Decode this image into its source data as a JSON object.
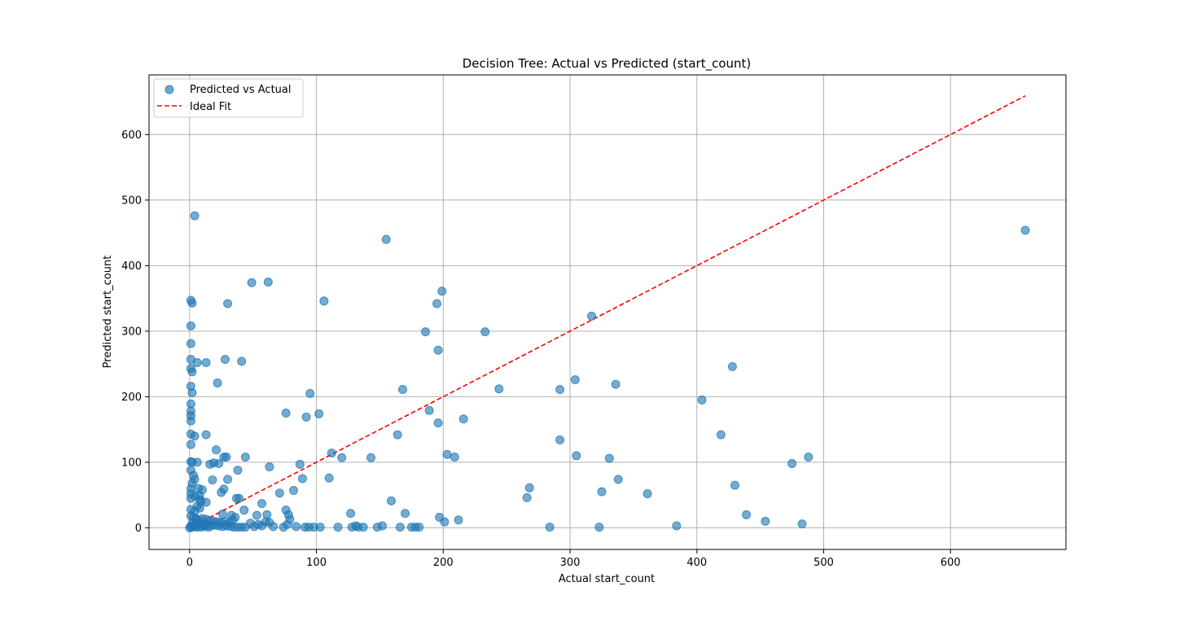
{
  "chart_data": {
    "type": "scatter",
    "title": "Decision Tree: Actual vs Predicted (start_count)",
    "xlabel": "Actual start_count",
    "ylabel": "Predicted start_count",
    "xlim": [
      -32,
      691
    ],
    "ylim": [
      -33,
      691
    ],
    "xticks": [
      0,
      100,
      200,
      300,
      400,
      500,
      600
    ],
    "yticks": [
      0,
      100,
      200,
      300,
      400,
      500,
      600
    ],
    "grid": true,
    "legend_position": "top-left",
    "colors": {
      "points": "#1f77b4",
      "ideal_line": "#ff0000",
      "grid": "#b0b0b0"
    },
    "series": [
      {
        "name": "Predicted vs Actual",
        "style": "markers",
        "points": [
          [
            4,
            476
          ],
          [
            155,
            440
          ],
          [
            659,
            454
          ],
          [
            49,
            374
          ],
          [
            62,
            375
          ],
          [
            106,
            346
          ],
          [
            1,
            347
          ],
          [
            2,
            343
          ],
          [
            30,
            342
          ],
          [
            199,
            361
          ],
          [
            195,
            342
          ],
          [
            317,
            323
          ],
          [
            186,
            299
          ],
          [
            233,
            299
          ],
          [
            1,
            308
          ],
          [
            196,
            271
          ],
          [
            1,
            281
          ],
          [
            428,
            246
          ],
          [
            1,
            257
          ],
          [
            28,
            257
          ],
          [
            6,
            252
          ],
          [
            13,
            252
          ],
          [
            41,
            254
          ],
          [
            1,
            243
          ],
          [
            2,
            238
          ],
          [
            22,
            221
          ],
          [
            336,
            219
          ],
          [
            304,
            226
          ],
          [
            1,
            216
          ],
          [
            168,
            211
          ],
          [
            244,
            212
          ],
          [
            292,
            211
          ],
          [
            2,
            206
          ],
          [
            95,
            205
          ],
          [
            404,
            195
          ],
          [
            1,
            189
          ],
          [
            1,
            178
          ],
          [
            1,
            171
          ],
          [
            76,
            175
          ],
          [
            102,
            174
          ],
          [
            189,
            179
          ],
          [
            1,
            163
          ],
          [
            92,
            169
          ],
          [
            216,
            166
          ],
          [
            196,
            160
          ],
          [
            1,
            143
          ],
          [
            4,
            140
          ],
          [
            13,
            142
          ],
          [
            164,
            142
          ],
          [
            419,
            142
          ],
          [
            1,
            127
          ],
          [
            292,
            134
          ],
          [
            21,
            119
          ],
          [
            112,
            114
          ],
          [
            120,
            107
          ],
          [
            143,
            107
          ],
          [
            203,
            112
          ],
          [
            209,
            108
          ],
          [
            305,
            110
          ],
          [
            331,
            106
          ],
          [
            488,
            108
          ],
          [
            475,
            98
          ],
          [
            1,
            101
          ],
          [
            2,
            100
          ],
          [
            6,
            100
          ],
          [
            16,
            97
          ],
          [
            19,
            99
          ],
          [
            23,
            98
          ],
          [
            27,
            108
          ],
          [
            29,
            108
          ],
          [
            44,
            108
          ],
          [
            1,
            88
          ],
          [
            38,
            88
          ],
          [
            63,
            93
          ],
          [
            87,
            97
          ],
          [
            3,
            80
          ],
          [
            4,
            74
          ],
          [
            18,
            73
          ],
          [
            30,
            74
          ],
          [
            89,
            75
          ],
          [
            110,
            76
          ],
          [
            338,
            74
          ],
          [
            2,
            68
          ],
          [
            1,
            60
          ],
          [
            7,
            60
          ],
          [
            10,
            58
          ],
          [
            27,
            59
          ],
          [
            25,
            54
          ],
          [
            71,
            53
          ],
          [
            82,
            57
          ],
          [
            268,
            61
          ],
          [
            430,
            65
          ],
          [
            1,
            52
          ],
          [
            4,
            48
          ],
          [
            8,
            49
          ],
          [
            37,
            45
          ],
          [
            39,
            45
          ],
          [
            325,
            55
          ],
          [
            361,
            52
          ],
          [
            266,
            46
          ],
          [
            1,
            45
          ],
          [
            8,
            43
          ],
          [
            9,
            40
          ],
          [
            13,
            39
          ],
          [
            57,
            37
          ],
          [
            159,
            41
          ],
          [
            6,
            33
          ],
          [
            8,
            30
          ],
          [
            1,
            28
          ],
          [
            4,
            25
          ],
          [
            43,
            27
          ],
          [
            76,
            27
          ],
          [
            170,
            22
          ],
          [
            127,
            22
          ],
          [
            439,
            20
          ],
          [
            26,
            21
          ],
          [
            33,
            19
          ],
          [
            36,
            16
          ],
          [
            53,
            19
          ],
          [
            61,
            20
          ],
          [
            78,
            20
          ],
          [
            197,
            16
          ],
          [
            212,
            12
          ],
          [
            201,
            9
          ],
          [
            454,
            10
          ],
          [
            483,
            6
          ],
          [
            1,
            18
          ],
          [
            3,
            16
          ],
          [
            5,
            14
          ],
          [
            7,
            12
          ],
          [
            10,
            14
          ],
          [
            13,
            13
          ],
          [
            16,
            11
          ],
          [
            19,
            10
          ],
          [
            22,
            9
          ],
          [
            25,
            8
          ],
          [
            28,
            10
          ],
          [
            31,
            7
          ],
          [
            34,
            12
          ],
          [
            2,
            7
          ],
          [
            5,
            6
          ],
          [
            8,
            5
          ],
          [
            11,
            4
          ],
          [
            14,
            5
          ],
          [
            17,
            3
          ],
          [
            20,
            4
          ],
          [
            23,
            3
          ],
          [
            26,
            2
          ],
          [
            29,
            3
          ],
          [
            32,
            2
          ],
          [
            35,
            1
          ],
          [
            38,
            1
          ],
          [
            41,
            1
          ],
          [
            44,
            1
          ],
          [
            48,
            7
          ],
          [
            51,
            2
          ],
          [
            54,
            5
          ],
          [
            57,
            3
          ],
          [
            60,
            9
          ],
          [
            63,
            8
          ],
          [
            66,
            2
          ],
          [
            74,
            1
          ],
          [
            77,
            5
          ],
          [
            79,
            13
          ],
          [
            84,
            2
          ],
          [
            91,
            1
          ],
          [
            94,
            1
          ],
          [
            98,
            1
          ],
          [
            103,
            1
          ],
          [
            117,
            1
          ],
          [
            128,
            1
          ],
          [
            131,
            3
          ],
          [
            133,
            1
          ],
          [
            137,
            1
          ],
          [
            148,
            1
          ],
          [
            152,
            3
          ],
          [
            166,
            1
          ],
          [
            175,
            1
          ],
          [
            178,
            1
          ],
          [
            181,
            1
          ],
          [
            284,
            1
          ],
          [
            323,
            1
          ],
          [
            384,
            3
          ],
          [
            0,
            0
          ],
          [
            1,
            2
          ],
          [
            2,
            1
          ],
          [
            3,
            3
          ],
          [
            4,
            2
          ],
          [
            6,
            1
          ],
          [
            9,
            1
          ],
          [
            12,
            2
          ],
          [
            15,
            1
          ]
        ]
      },
      {
        "name": "Ideal Fit",
        "style": "dashed-line",
        "points": [
          [
            0,
            0
          ],
          [
            659,
            659
          ]
        ]
      }
    ]
  }
}
